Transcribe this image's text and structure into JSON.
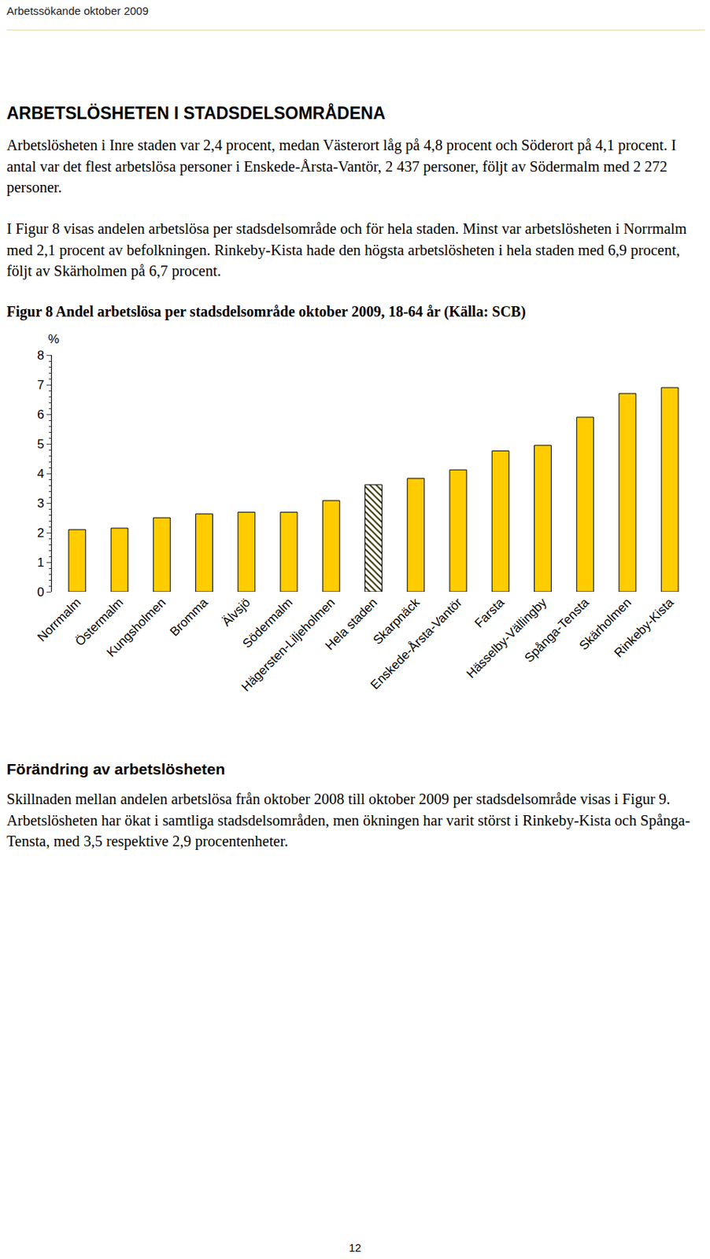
{
  "header": "Arbetssökande oktober 2009",
  "section1": {
    "heading": "ARBETSLÖSHETEN I STADSDELSOMRÅDENA",
    "paragraphs": [
      "Arbetslösheten i Inre staden var 2,4 procent, medan Västerort låg på 4,8 procent och Söderort på 4,1 procent. I antal var det flest arbetslösa personer i Enskede-Årsta-Vantör, 2 437 personer, följt av Södermalm med 2 272 personer.",
      "I Figur 8 visas andelen arbetslösa per stadsdelsområde och för hela staden. Minst var arbetslösheten i Norrmalm med 2,1 procent av befolkningen. Rinkeby-Kista hade den högsta arbetslösheten i hela staden med 6,9 procent, följt av Skärholmen på 6,7 procent."
    ]
  },
  "figure_caption": "Figur 8 Andel arbetslösa per stadsdelsområde oktober 2009, 18-64 år (Källa: SCB)",
  "chart_data": {
    "type": "bar",
    "ylabel": "%",
    "categories": [
      "Norrmalm",
      "Östermalm",
      "Kungsholmen",
      "Bromma",
      "Älvsjö",
      "Södermalm",
      "Hägersten-Liljeholmen",
      "Hela staden",
      "Skarpnäck",
      "Enskede-Årsta-Vantör",
      "Farsta",
      "Hässelby-Vällingby",
      "Spånga-Tensta",
      "Skärholmen",
      "Rinkeby-Kista"
    ],
    "values": [
      2.1,
      2.15,
      2.5,
      2.63,
      2.69,
      2.69,
      3.08,
      3.62,
      3.83,
      4.12,
      4.76,
      4.95,
      5.9,
      6.7,
      6.9
    ],
    "color": "#ffcc00",
    "colors": [
      "#ffcc00",
      "#ffcc00",
      "#ffcc00",
      "#ffcc00",
      "#ffcc00",
      "#ffcc00",
      "#ffcc00",
      "#333300",
      "#ffcc00",
      "#ffcc00",
      "#ffcc00",
      "#ffcc00",
      "#ffcc00",
      "#ffcc00",
      "#ffcc00"
    ],
    "ylim": [
      0,
      8
    ],
    "yticks": [
      0,
      1,
      2,
      3,
      4,
      5,
      6,
      7,
      8
    ],
    "grid": false
  },
  "section2": {
    "heading": "Förändring av arbetslösheten",
    "paragraphs": [
      "Skillnaden mellan andelen arbetslösa från oktober 2008 till oktober 2009 per stadsdelsområde visas i Figur 9. Arbetslösheten har ökat i samtliga stadsdelsområden, men ökningen har varit störst i Rinkeby-Kista och Spånga-Tensta, med 3,5 respektive 2,9 procentenheter."
    ]
  },
  "page_number": "12"
}
